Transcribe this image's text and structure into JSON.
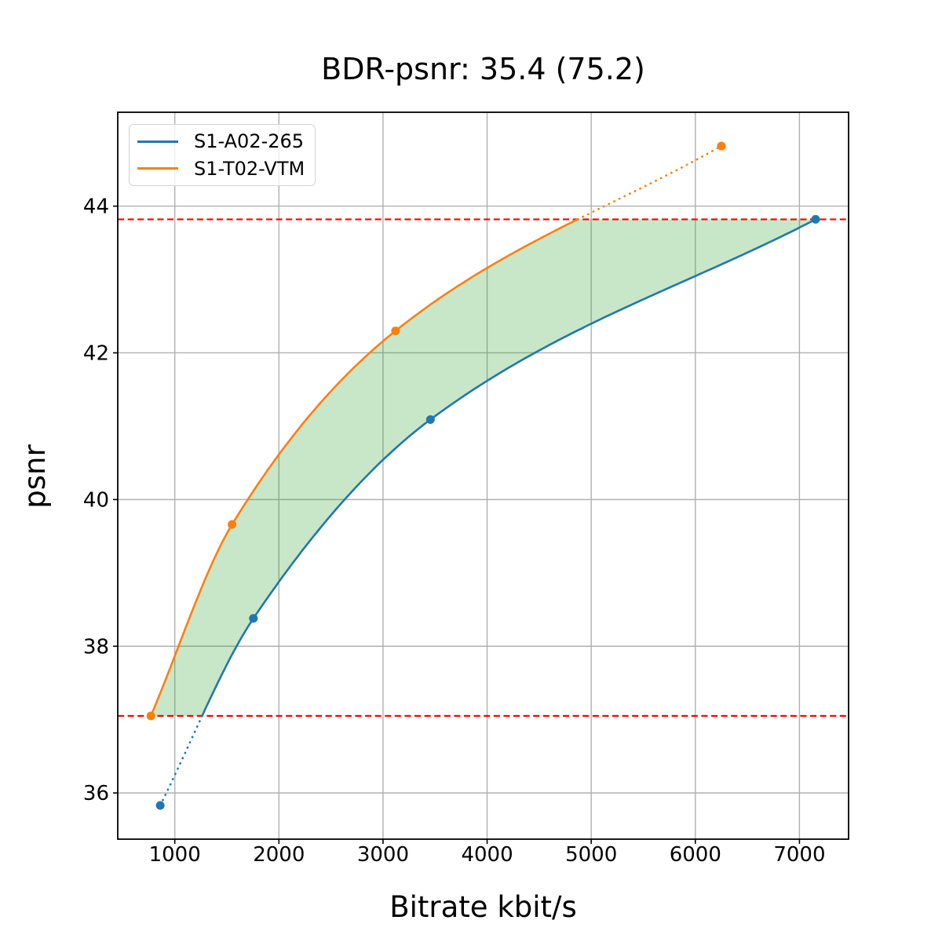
{
  "chart_data": {
    "type": "line",
    "title": "BDR-psnr: 35.4 (75.2)",
    "xlabel": "Bitrate kbit/s",
    "ylabel": "psnr",
    "xlim": [
      452,
      7472
    ],
    "ylim": [
      35.37,
      45.28
    ],
    "x_ticks": [
      1000,
      2000,
      3000,
      4000,
      5000,
      6000,
      7000
    ],
    "y_ticks": [
      36,
      38,
      40,
      42,
      44
    ],
    "grid": true,
    "grid_color": "#b0b0b0",
    "legend_position": "upper-left",
    "series": [
      {
        "name": "S1-A02-265",
        "color": "#1f77b4",
        "points": [
          [
            860,
            35.83
          ],
          [
            1755,
            38.38
          ],
          [
            3455,
            41.09
          ],
          [
            7155,
            43.82
          ]
        ]
      },
      {
        "name": "S1-T02-VTM",
        "color": "#ff7f0e",
        "points": [
          [
            770,
            37.05
          ],
          [
            1550,
            39.66
          ],
          [
            3120,
            42.3
          ],
          [
            6250,
            44.82
          ]
        ]
      }
    ],
    "bd_interval_lines": {
      "color": "#ff0000",
      "style": "dashed",
      "lower_psnr": 37.05,
      "upper_psnr": 43.82
    },
    "fill_between": {
      "color": "#2ca02c",
      "opacity": 0.26
    }
  }
}
